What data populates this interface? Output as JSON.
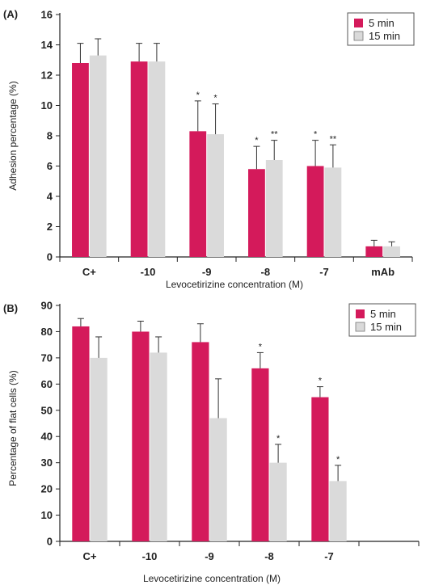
{
  "colors": {
    "series_5min": "#d41a5b",
    "series_15min": "#dadada"
  },
  "chart_data": [
    {
      "type": "bar",
      "panel_label": "(A)",
      "categories": [
        "C+",
        "-10",
        "-9",
        "-8",
        "-7",
        "mAb"
      ],
      "series": [
        {
          "name": "5 min",
          "values": [
            12.8,
            12.9,
            8.3,
            5.8,
            6.0,
            0.7
          ],
          "errors": [
            1.3,
            1.2,
            2.0,
            1.5,
            1.7,
            0.4
          ],
          "annotations": [
            "",
            "",
            "*",
            "*",
            "*",
            ""
          ]
        },
        {
          "name": "15 min",
          "values": [
            13.3,
            12.9,
            8.1,
            6.4,
            5.9,
            0.7
          ],
          "errors": [
            1.1,
            1.2,
            2.0,
            1.3,
            1.5,
            0.3
          ],
          "annotations": [
            "",
            "",
            "*",
            "**",
            "**",
            ""
          ]
        }
      ],
      "xlabel": "Levocetirizine concentration (M)",
      "ylabel": "Adhesion percentage (%)",
      "ylim": [
        0,
        16
      ],
      "yticks": [
        0,
        2,
        4,
        6,
        8,
        10,
        12,
        14,
        16
      ],
      "legend_position": "top-right",
      "grid": false
    },
    {
      "type": "bar",
      "panel_label": "(B)",
      "categories": [
        "C+",
        "-10",
        "-9",
        "-8",
        "-7",
        ""
      ],
      "series": [
        {
          "name": "5 min",
          "values": [
            82,
            80,
            76,
            66,
            55,
            null
          ],
          "errors": [
            3,
            4,
            7,
            6,
            4,
            null
          ],
          "annotations": [
            "",
            "",
            "",
            "*",
            "*",
            ""
          ]
        },
        {
          "name": "15 min",
          "values": [
            70,
            72,
            47,
            30,
            23,
            null
          ],
          "errors": [
            8,
            6,
            15,
            7,
            6,
            null
          ],
          "annotations": [
            "",
            "",
            "",
            "*",
            "*",
            ""
          ]
        }
      ],
      "xlabel": "Levocetirizine concentration (M)",
      "ylabel": "Percentage of flat cells (%)",
      "ylim": [
        0,
        90
      ],
      "yticks": [
        0,
        10,
        20,
        30,
        40,
        50,
        60,
        70,
        80,
        90
      ],
      "legend_position": "top-right",
      "grid": false
    }
  ]
}
